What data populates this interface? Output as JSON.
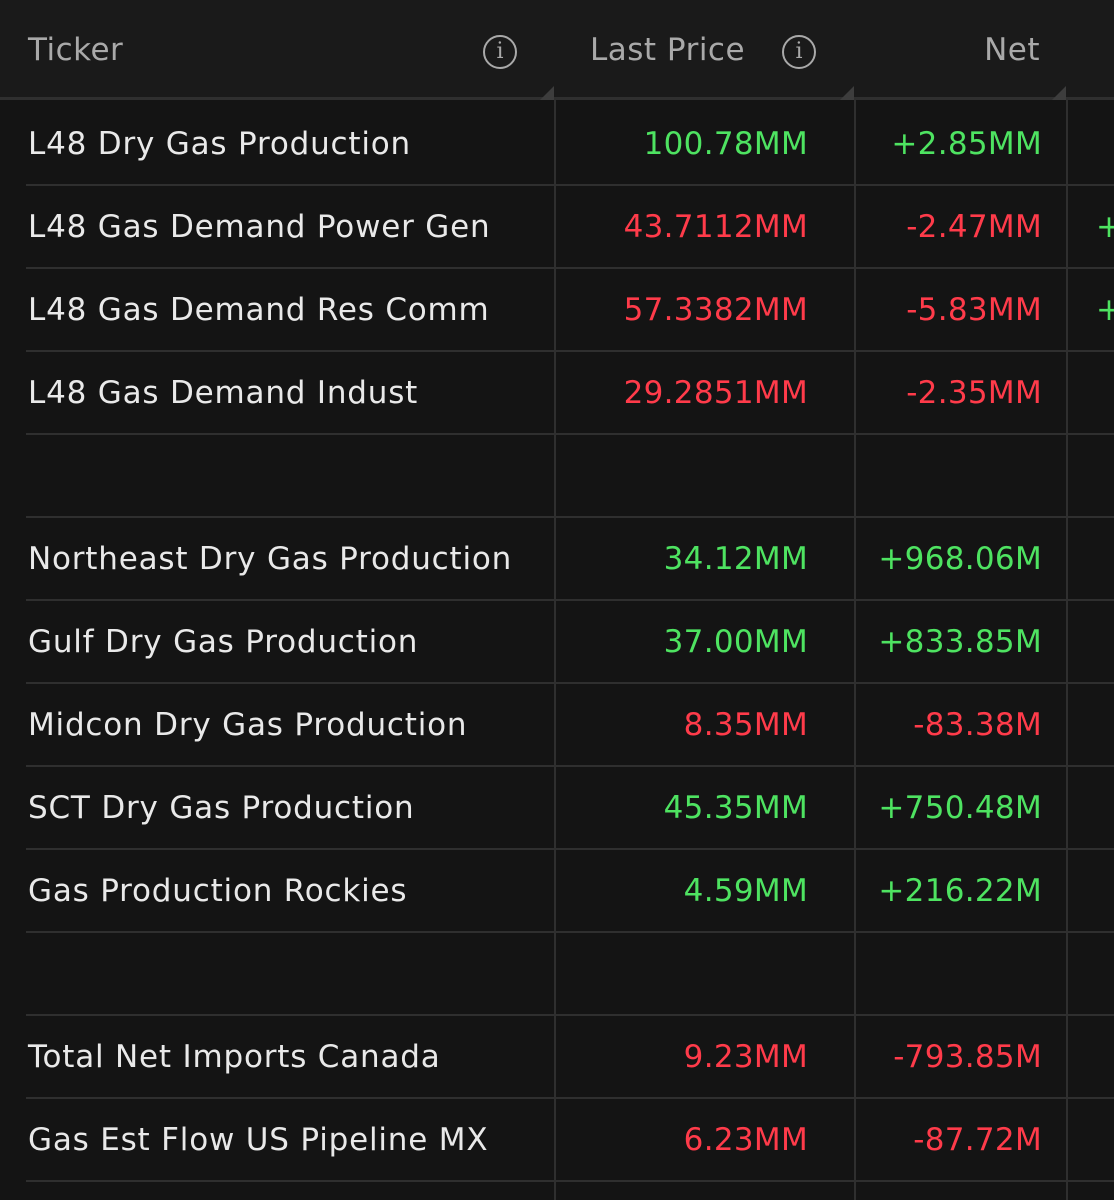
{
  "header": {
    "ticker_label": "Ticker",
    "last_price_label": "Last Price",
    "net_label": "Net"
  },
  "rows": [
    {
      "name": "L48 Dry Gas Production",
      "price": "100.78MM",
      "net": "+2.85MM",
      "dir": "pos",
      "extra": ""
    },
    {
      "name": "L48 Gas Demand Power Gen",
      "price": "43.7112MM",
      "net": "-2.47MM",
      "dir": "neg",
      "extra": "+"
    },
    {
      "name": "L48 Gas Demand Res Comm",
      "price": "57.3382MM",
      "net": "-5.83MM",
      "dir": "neg",
      "extra": "+"
    },
    {
      "name": "L48 Gas Demand Indust",
      "price": "29.2851MM",
      "net": "-2.35MM",
      "dir": "neg",
      "extra": ""
    },
    {
      "name": "",
      "price": "",
      "net": "",
      "dir": "",
      "extra": ""
    },
    {
      "name": "Northeast Dry Gas Production",
      "price": "34.12MM",
      "net": "+968.06M",
      "dir": "pos",
      "extra": ""
    },
    {
      "name": "Gulf Dry Gas Production",
      "price": "37.00MM",
      "net": "+833.85M",
      "dir": "pos",
      "extra": ""
    },
    {
      "name": "Midcon Dry Gas Production",
      "price": "8.35MM",
      "net": "-83.38M",
      "dir": "neg",
      "extra": ""
    },
    {
      "name": "SCT Dry Gas Production",
      "price": "45.35MM",
      "net": "+750.48M",
      "dir": "pos",
      "extra": ""
    },
    {
      "name": "Gas Production Rockies",
      "price": "4.59MM",
      "net": "+216.22M",
      "dir": "pos",
      "extra": ""
    },
    {
      "name": "",
      "price": "",
      "net": "",
      "dir": "",
      "extra": ""
    },
    {
      "name": "Total Net Imports Canada",
      "price": "9.23MM",
      "net": "-793.85M",
      "dir": "neg",
      "extra": ""
    },
    {
      "name": "Gas Est Flow US Pipeline MX",
      "price": "6.23MM",
      "net": "-87.72M",
      "dir": "neg",
      "extra": ""
    }
  ],
  "colors": {
    "positive": "#4ee361",
    "negative": "#ff3b4a",
    "background": "#141414"
  },
  "icons": [
    "info-icon",
    "info-icon"
  ]
}
